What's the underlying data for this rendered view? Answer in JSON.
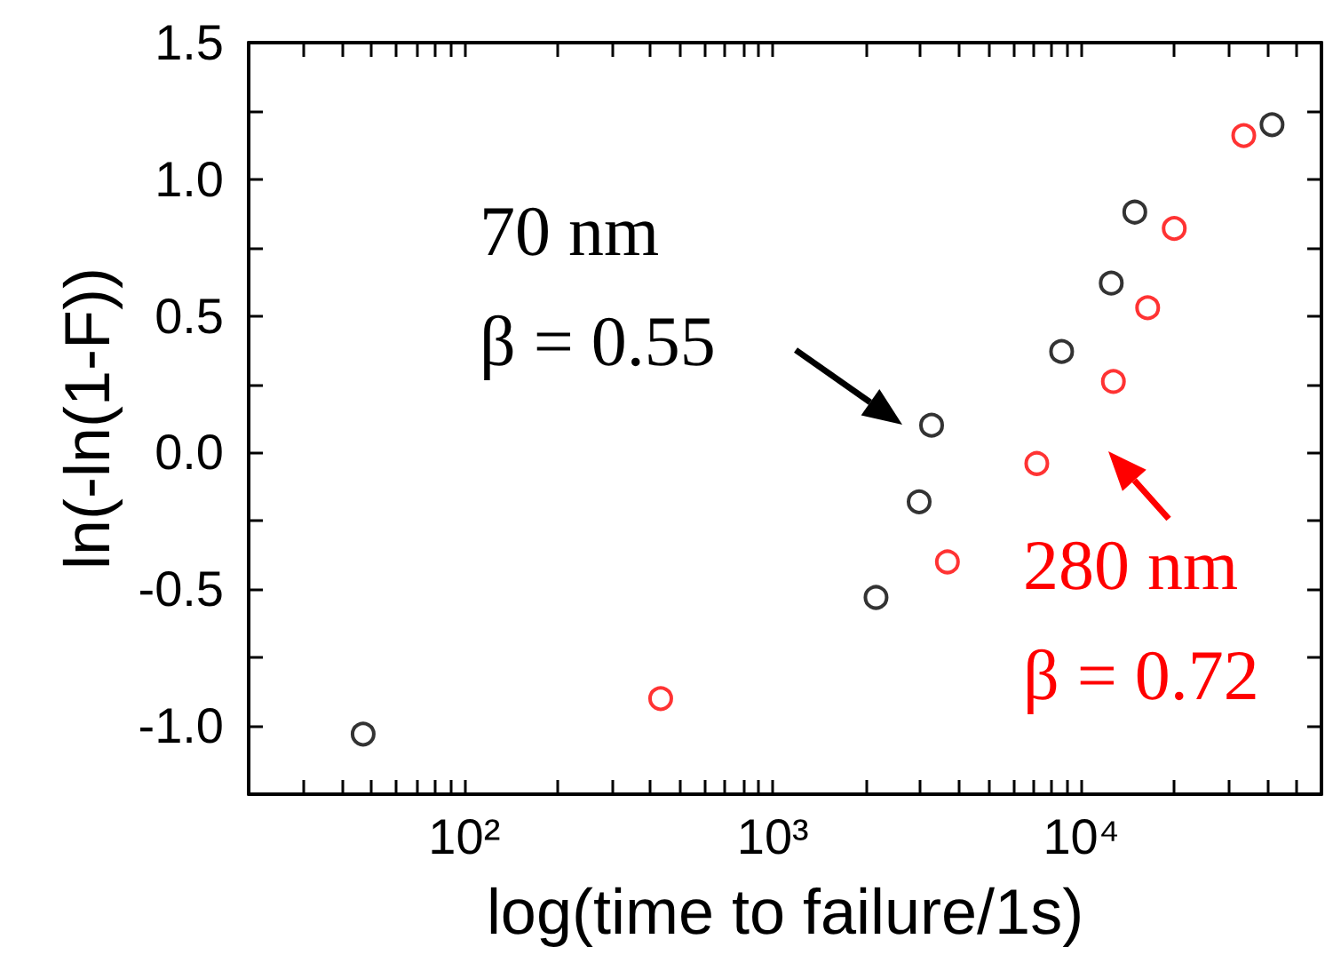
{
  "chart_data": {
    "type": "scatter",
    "xlabel": "log(time to failure/1s)",
    "ylabel": "ln(-ln(1-F))",
    "log": "x",
    "xlim": [
      20,
      60000
    ],
    "ylim": [
      -1.25,
      1.5
    ],
    "xticks": [
      {
        "value": 30,
        "label": null
      },
      {
        "value": 40,
        "label": null
      },
      {
        "value": 50,
        "label": null
      },
      {
        "value": 60,
        "label": null
      },
      {
        "value": 70,
        "label": null
      },
      {
        "value": 80,
        "label": null
      },
      {
        "value": 90,
        "label": null
      },
      {
        "value": 100,
        "label": "10²"
      },
      {
        "value": 200,
        "label": null
      },
      {
        "value": 300,
        "label": null
      },
      {
        "value": 400,
        "label": null
      },
      {
        "value": 500,
        "label": null
      },
      {
        "value": 600,
        "label": null
      },
      {
        "value": 700,
        "label": null
      },
      {
        "value": 800,
        "label": null
      },
      {
        "value": 900,
        "label": null
      },
      {
        "value": 1000,
        "label": "10³"
      },
      {
        "value": 2000,
        "label": null
      },
      {
        "value": 3000,
        "label": null
      },
      {
        "value": 4000,
        "label": null
      },
      {
        "value": 5000,
        "label": null
      },
      {
        "value": 6000,
        "label": null
      },
      {
        "value": 7000,
        "label": null
      },
      {
        "value": 8000,
        "label": null
      },
      {
        "value": 9000,
        "label": null
      },
      {
        "value": 10000,
        "label": "10⁴"
      },
      {
        "value": 20000,
        "label": null
      },
      {
        "value": 30000,
        "label": null
      },
      {
        "value": 40000,
        "label": null
      },
      {
        "value": 50000,
        "label": null
      }
    ],
    "yticks": [
      {
        "value": -1.0,
        "label": "-1.0"
      },
      {
        "value": -0.75,
        "label": null
      },
      {
        "value": -0.5,
        "label": "-0.5"
      },
      {
        "value": -0.25,
        "label": null
      },
      {
        "value": 0.0,
        "label": "0.0"
      },
      {
        "value": 0.25,
        "label": null
      },
      {
        "value": 0.5,
        "label": "0.5"
      },
      {
        "value": 0.75,
        "label": null
      },
      {
        "value": 1.0,
        "label": "1.0"
      },
      {
        "value": 1.25,
        "label": null
      },
      {
        "value": 1.5,
        "label": "1.5"
      }
    ],
    "grid": false,
    "marker": "circle",
    "series": [
      {
        "color": "#000000",
        "x": [
          47,
          2160,
          2980,
          3270,
          8630,
          12500,
          14900,
          41500
        ],
        "values": [
          -1.03,
          -0.53,
          -0.18,
          0.1,
          0.37,
          0.62,
          0.88,
          1.2
        ]
      },
      {
        "color": "#ff0000",
        "x": [
          433,
          3680,
          7170,
          12700,
          16400,
          20000,
          33600
        ],
        "values": [
          -0.9,
          -0.4,
          -0.04,
          0.26,
          0.53,
          0.82,
          1.16
        ]
      }
    ],
    "annotations": [
      "70 nm",
      "β = 0.55",
      "280 nm",
      "β = 0.72"
    ]
  }
}
